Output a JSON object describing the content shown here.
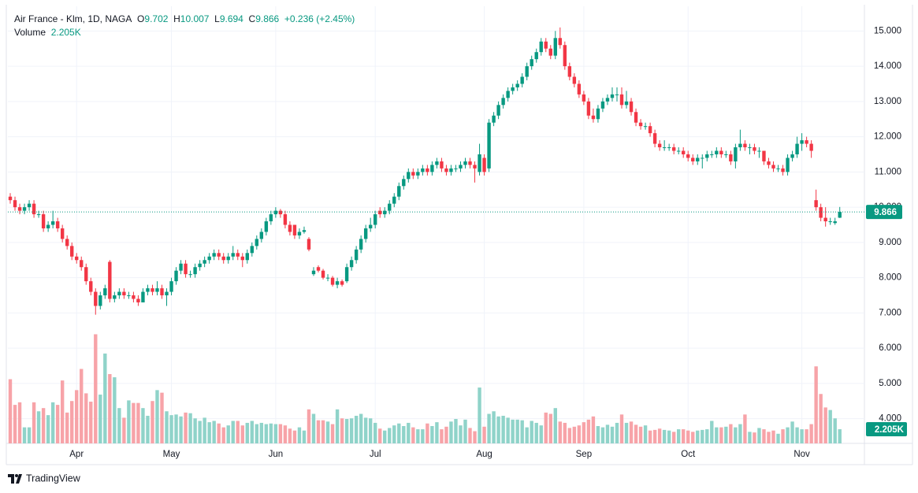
{
  "chart_data": {
    "type": "candlestick",
    "legend": {
      "symbol": "Air France - Klm, 1D, NAGA",
      "open": "O",
      "high": "H",
      "low": "L",
      "close": "C",
      "change": "+0.236 (+2.45%)",
      "volume": "Volume"
    },
    "volume_last_label": "2.205K",
    "up_color": "#089981",
    "down_color": "#f23645",
    "volume_up_color": "#8fd3c9",
    "volume_down_color": "#f7a3a8",
    "footer": "TradingView",
    "xlim": [
      -0.5,
      180.2
    ],
    "xticks": [
      {
        "value": 14,
        "label": "Apr"
      },
      {
        "value": 34,
        "label": "May"
      },
      {
        "value": 56,
        "label": "Jun"
      },
      {
        "value": 77,
        "label": "Jul"
      },
      {
        "value": 100,
        "label": "Aug"
      },
      {
        "value": 121,
        "label": "Sep"
      },
      {
        "value": 143,
        "label": "Oct"
      },
      {
        "value": 167,
        "label": "Nov"
      }
    ],
    "ylim": [
      3.3,
      15.7
    ],
    "yticks": [
      {
        "value": 4,
        "label": "4.000"
      },
      {
        "value": 5,
        "label": "5.000"
      },
      {
        "value": 6,
        "label": "6.000"
      },
      {
        "value": 7,
        "label": "7.000"
      },
      {
        "value": 8,
        "label": "8.000"
      },
      {
        "value": 9,
        "label": "9.000"
      },
      {
        "value": 10,
        "label": "10.000"
      },
      {
        "value": 11,
        "label": "11.000"
      },
      {
        "value": 12,
        "label": "12.000"
      },
      {
        "value": 13,
        "label": "13.000"
      },
      {
        "value": 14,
        "label": "14.000"
      },
      {
        "value": 15,
        "label": "15.000"
      }
    ],
    "volume_ylim": [
      0,
      20
    ],
    "grid": true,
    "candles": [
      [
        10.3,
        10.4,
        10.1,
        10.2
      ],
      [
        10.2,
        10.3,
        9.9,
        10.0
      ],
      [
        10.0,
        10.1,
        9.8,
        9.9
      ],
      [
        9.9,
        10.1,
        9.8,
        10.0
      ],
      [
        10.0,
        10.2,
        9.9,
        10.1
      ],
      [
        10.1,
        10.2,
        9.7,
        9.8
      ],
      [
        9.8,
        9.9,
        9.7,
        9.8
      ],
      [
        9.8,
        9.9,
        9.3,
        9.4
      ],
      [
        9.4,
        9.6,
        9.3,
        9.5
      ],
      [
        9.5,
        9.9,
        9.4,
        9.6
      ],
      [
        9.6,
        9.7,
        9.3,
        9.4
      ],
      [
        9.4,
        9.5,
        9.0,
        9.1
      ],
      [
        9.1,
        9.2,
        8.8,
        8.9
      ],
      [
        8.9,
        9.0,
        8.5,
        8.6
      ],
      [
        8.6,
        8.7,
        8.4,
        8.5
      ],
      [
        8.5,
        8.6,
        8.2,
        8.3
      ],
      [
        8.3,
        8.4,
        7.8,
        7.9
      ],
      [
        7.9,
        8.0,
        7.5,
        7.6
      ],
      [
        7.6,
        7.7,
        6.95,
        7.2
      ],
      [
        7.2,
        7.6,
        7.1,
        7.5
      ],
      [
        7.5,
        7.8,
        7.4,
        7.7
      ],
      [
        8.45,
        8.5,
        7.3,
        7.4
      ],
      [
        7.4,
        7.6,
        7.3,
        7.5
      ],
      [
        7.5,
        7.7,
        7.4,
        7.6
      ],
      [
        7.6,
        7.7,
        7.4,
        7.5
      ],
      [
        7.5,
        7.6,
        7.4,
        7.5
      ],
      [
        7.5,
        7.6,
        7.3,
        7.4
      ],
      [
        7.4,
        7.5,
        7.2,
        7.3
      ],
      [
        7.3,
        7.7,
        7.3,
        7.6
      ],
      [
        7.6,
        7.8,
        7.5,
        7.7
      ],
      [
        7.7,
        7.8,
        7.5,
        7.6
      ],
      [
        7.6,
        7.9,
        7.5,
        7.7
      ],
      [
        7.7,
        7.8,
        7.4,
        7.5
      ],
      [
        7.5,
        7.7,
        7.2,
        7.6
      ],
      [
        7.6,
        8.0,
        7.5,
        7.9
      ],
      [
        7.9,
        8.3,
        7.8,
        8.2
      ],
      [
        8.2,
        8.5,
        8.1,
        8.4
      ],
      [
        8.4,
        8.5,
        8.0,
        8.1
      ],
      [
        8.1,
        8.2,
        8.0,
        8.1
      ],
      [
        8.1,
        8.4,
        8.0,
        8.3
      ],
      [
        8.3,
        8.5,
        8.2,
        8.4
      ],
      [
        8.4,
        8.6,
        8.3,
        8.5
      ],
      [
        8.5,
        8.7,
        8.4,
        8.6
      ],
      [
        8.6,
        8.8,
        8.5,
        8.7
      ],
      [
        8.7,
        8.8,
        8.5,
        8.6
      ],
      [
        8.6,
        8.7,
        8.4,
        8.5
      ],
      [
        8.5,
        8.7,
        8.4,
        8.6
      ],
      [
        8.6,
        8.9,
        8.5,
        8.7
      ],
      [
        8.7,
        8.8,
        8.5,
        8.6
      ],
      [
        8.6,
        8.7,
        8.3,
        8.5
      ],
      [
        8.5,
        8.8,
        8.4,
        8.7
      ],
      [
        8.7,
        9.0,
        8.6,
        8.9
      ],
      [
        8.9,
        9.2,
        8.8,
        9.1
      ],
      [
        9.1,
        9.4,
        9.0,
        9.3
      ],
      [
        9.3,
        9.7,
        9.2,
        9.6
      ],
      [
        9.6,
        9.9,
        9.5,
        9.8
      ],
      [
        9.8,
        10.0,
        9.7,
        9.9
      ],
      [
        9.9,
        9.95,
        9.7,
        9.8
      ],
      [
        9.8,
        9.9,
        9.4,
        9.5
      ],
      [
        9.5,
        9.6,
        9.2,
        9.3
      ],
      [
        9.5,
        9.5,
        9.1,
        9.2
      ],
      [
        9.2,
        9.4,
        9.1,
        9.3
      ],
      [
        9.3,
        9.45,
        9.25,
        9.35
      ],
      [
        9.1,
        9.15,
        8.75,
        8.8
      ],
      [
        8.1,
        8.3,
        8.05,
        8.2
      ],
      [
        8.3,
        8.35,
        8.15,
        8.2
      ],
      [
        8.2,
        8.25,
        7.95,
        8.0
      ],
      [
        8.0,
        8.1,
        7.9,
        8.0
      ],
      [
        8.0,
        8.05,
        7.75,
        7.8
      ],
      [
        7.8,
        8.0,
        7.7,
        7.9
      ],
      [
        7.9,
        7.95,
        7.75,
        7.8
      ],
      [
        7.9,
        8.4,
        7.85,
        8.3
      ],
      [
        8.3,
        8.6,
        8.2,
        8.5
      ],
      [
        8.5,
        8.9,
        8.4,
        8.8
      ],
      [
        8.8,
        9.2,
        8.7,
        9.1
      ],
      [
        9.1,
        9.5,
        9.0,
        9.4
      ],
      [
        9.4,
        9.7,
        9.3,
        9.5
      ],
      [
        9.5,
        9.9,
        9.4,
        9.8
      ],
      [
        9.9,
        10.0,
        9.7,
        9.8
      ],
      [
        9.8,
        10.0,
        9.7,
        9.9
      ],
      [
        9.9,
        10.2,
        9.8,
        10.1
      ],
      [
        10.1,
        10.4,
        10.0,
        10.3
      ],
      [
        10.3,
        10.7,
        10.2,
        10.6
      ],
      [
        10.6,
        10.9,
        10.5,
        10.8
      ],
      [
        10.8,
        11.1,
        10.7,
        11.0
      ],
      [
        11.0,
        11.1,
        10.8,
        10.9
      ],
      [
        10.9,
        11.1,
        10.8,
        11.0
      ],
      [
        11.0,
        11.2,
        10.9,
        11.1
      ],
      [
        11.1,
        11.2,
        10.9,
        11.0
      ],
      [
        11.0,
        11.3,
        10.9,
        11.2
      ],
      [
        11.2,
        11.4,
        11.1,
        11.3
      ],
      [
        11.3,
        11.4,
        11.0,
        11.1
      ],
      [
        11.1,
        11.2,
        10.9,
        11.0
      ],
      [
        11.0,
        11.2,
        10.9,
        11.1
      ],
      [
        11.1,
        11.2,
        11.0,
        11.1
      ],
      [
        11.1,
        11.3,
        11.0,
        11.2
      ],
      [
        11.2,
        11.4,
        11.1,
        11.3
      ],
      [
        11.3,
        11.4,
        11.1,
        11.2
      ],
      [
        11.2,
        11.3,
        10.7,
        11.1
      ],
      [
        11.0,
        11.8,
        10.9,
        11.5
      ],
      [
        11.4,
        11.5,
        10.9,
        11.0
      ],
      [
        11.1,
        12.5,
        11.0,
        12.4
      ],
      [
        12.4,
        12.7,
        12.3,
        12.6
      ],
      [
        12.6,
        13.0,
        12.5,
        12.9
      ],
      [
        12.9,
        13.2,
        12.8,
        13.1
      ],
      [
        13.1,
        13.4,
        13.0,
        13.3
      ],
      [
        13.3,
        13.5,
        13.2,
        13.4
      ],
      [
        13.4,
        13.6,
        13.3,
        13.5
      ],
      [
        13.5,
        13.8,
        13.4,
        13.7
      ],
      [
        13.7,
        14.1,
        13.6,
        14.0
      ],
      [
        14.0,
        14.3,
        13.9,
        14.2
      ],
      [
        14.2,
        14.5,
        14.1,
        14.4
      ],
      [
        14.4,
        14.8,
        14.3,
        14.7
      ],
      [
        14.7,
        14.8,
        14.4,
        14.5
      ],
      [
        14.5,
        14.6,
        14.2,
        14.3
      ],
      [
        14.3,
        15.0,
        14.2,
        14.8
      ],
      [
        14.8,
        15.1,
        14.5,
        14.6
      ],
      [
        14.6,
        14.7,
        13.9,
        14.0
      ],
      [
        14.0,
        14.1,
        13.6,
        13.7
      ],
      [
        13.7,
        13.8,
        13.4,
        13.5
      ],
      [
        13.5,
        13.6,
        13.1,
        13.2
      ],
      [
        13.2,
        13.3,
        12.9,
        13.0
      ],
      [
        13.0,
        13.1,
        12.5,
        12.6
      ],
      [
        12.6,
        12.8,
        12.4,
        12.5
      ],
      [
        12.5,
        12.9,
        12.4,
        12.8
      ],
      [
        12.8,
        13.1,
        12.7,
        13.0
      ],
      [
        13.0,
        13.2,
        12.9,
        13.1
      ],
      [
        13.1,
        13.4,
        13.0,
        13.2
      ],
      [
        13.2,
        13.4,
        13.0,
        13.2
      ],
      [
        13.2,
        13.4,
        12.8,
        12.9
      ],
      [
        12.9,
        13.3,
        12.8,
        13.0
      ],
      [
        13.0,
        13.1,
        12.6,
        12.7
      ],
      [
        12.7,
        12.8,
        12.3,
        12.4
      ],
      [
        12.4,
        12.5,
        12.2,
        12.3
      ],
      [
        12.3,
        12.4,
        12.2,
        12.3
      ],
      [
        12.3,
        12.4,
        12.0,
        12.1
      ],
      [
        12.1,
        12.2,
        11.7,
        11.8
      ],
      [
        11.8,
        11.9,
        11.6,
        11.7
      ],
      [
        11.7,
        11.9,
        11.6,
        11.7
      ],
      [
        11.7,
        11.8,
        11.6,
        11.7
      ],
      [
        11.7,
        11.8,
        11.5,
        11.6
      ],
      [
        11.6,
        11.7,
        11.5,
        11.6
      ],
      [
        11.6,
        11.7,
        11.4,
        11.5
      ],
      [
        11.5,
        11.6,
        11.3,
        11.4
      ],
      [
        11.4,
        11.5,
        11.2,
        11.3
      ],
      [
        11.3,
        11.5,
        11.2,
        11.4
      ],
      [
        11.4,
        11.5,
        11.1,
        11.4
      ],
      [
        11.4,
        11.6,
        11.3,
        11.5
      ],
      [
        11.5,
        11.6,
        11.4,
        11.5
      ],
      [
        11.5,
        11.7,
        11.4,
        11.6
      ],
      [
        11.6,
        11.7,
        11.4,
        11.5
      ],
      [
        11.5,
        11.6,
        11.4,
        11.5
      ],
      [
        11.5,
        11.6,
        11.2,
        11.3
      ],
      [
        11.3,
        11.8,
        11.1,
        11.7
      ],
      [
        11.7,
        12.2,
        11.6,
        11.8
      ],
      [
        11.8,
        11.9,
        11.6,
        11.7
      ],
      [
        11.7,
        11.8,
        11.5,
        11.7
      ],
      [
        11.7,
        11.8,
        11.5,
        11.6
      ],
      [
        11.6,
        11.7,
        11.4,
        11.6
      ],
      [
        11.6,
        11.6,
        11.2,
        11.3
      ],
      [
        11.3,
        11.4,
        11.1,
        11.2
      ],
      [
        11.2,
        11.3,
        11.0,
        11.1
      ],
      [
        11.1,
        11.2,
        11.0,
        11.1
      ],
      [
        11.1,
        11.2,
        10.9,
        11.0
      ],
      [
        11.0,
        11.5,
        10.9,
        11.4
      ],
      [
        11.4,
        11.6,
        11.3,
        11.5
      ],
      [
        11.5,
        12.0,
        11.4,
        11.8
      ],
      [
        11.8,
        12.1,
        11.6,
        11.9
      ],
      [
        11.9,
        12.0,
        11.7,
        11.8
      ],
      [
        11.8,
        11.9,
        11.4,
        11.6
      ],
      [
        10.2,
        10.5,
        9.9,
        10.0
      ],
      [
        10.0,
        10.1,
        9.6,
        9.7
      ],
      [
        9.7,
        10.0,
        9.45,
        9.6
      ],
      [
        9.6,
        9.7,
        9.5,
        9.6
      ],
      [
        9.55,
        9.7,
        9.5,
        9.6
      ],
      [
        9.702,
        10.007,
        9.694,
        9.866
      ]
    ],
    "volume": [
      10,
      6,
      6.4,
      2.5,
      2.5,
      6.4,
      5,
      5.5,
      4.4,
      6.4,
      6,
      9.8,
      4.8,
      6.6,
      8.3,
      11.6,
      7.8,
      6.5,
      17,
      7.6,
      14,
      10.8,
      10.3,
      5.5,
      4,
      6.7,
      6.3,
      6.3,
      5.5,
      4.3,
      6.6,
      8.3,
      7.9,
      5,
      4.4,
      4.5,
      4.2,
      4.8,
      4.7,
      3.9,
      3.5,
      4,
      3.3,
      3.5,
      3.1,
      2.5,
      2.8,
      3.5,
      3.5,
      2.8,
      3.2,
      3.5,
      3,
      3.2,
      3,
      3.1,
      3,
      3,
      2.8,
      2.3,
      2,
      2.5,
      2,
      5.3,
      4.6,
      3.6,
      3.6,
      3.4,
      3,
      5.3,
      3.9,
      3.8,
      3.9,
      4.3,
      4.6,
      4,
      3.9,
      3.2,
      2.3,
      2,
      2.4,
      2.8,
      3.1,
      2.7,
      3.2,
      2.5,
      2.2,
      2.2,
      3.1,
      2.7,
      3.3,
      2.2,
      2.6,
      3.4,
      3.8,
      2.8,
      3.7,
      2.4,
      1.9,
      8.7,
      2.6,
      4.6,
      5,
      4.2,
      4.3,
      4,
      3.7,
      3.7,
      3.6,
      2.5,
      3.5,
      3.2,
      2.8,
      4.8,
      4.6,
      5.5,
      3.4,
      3.2,
      2.4,
      2.6,
      2.8,
      3.3,
      3.7,
      4.2,
      2.7,
      2.5,
      2.9,
      2.6,
      3.2,
      4.5,
      3.2,
      3.4,
      2.9,
      2.6,
      2.8,
      2,
      2.1,
      2.3,
      2.1,
      2,
      1.8,
      2.2,
      2.2,
      2,
      1.8,
      2,
      2.1,
      2.2,
      3.5,
      2.5,
      2.5,
      2.6,
      3,
      2.5,
      3,
      4.5,
      1.8,
      1.7,
      2.4,
      2.2,
      1.8,
      2,
      1.5,
      2.2,
      2.5,
      3.4,
      2.5,
      2.2,
      2.2,
      3,
      12,
      7.7,
      5.6,
      5.2,
      3.9,
      2.205
    ]
  }
}
